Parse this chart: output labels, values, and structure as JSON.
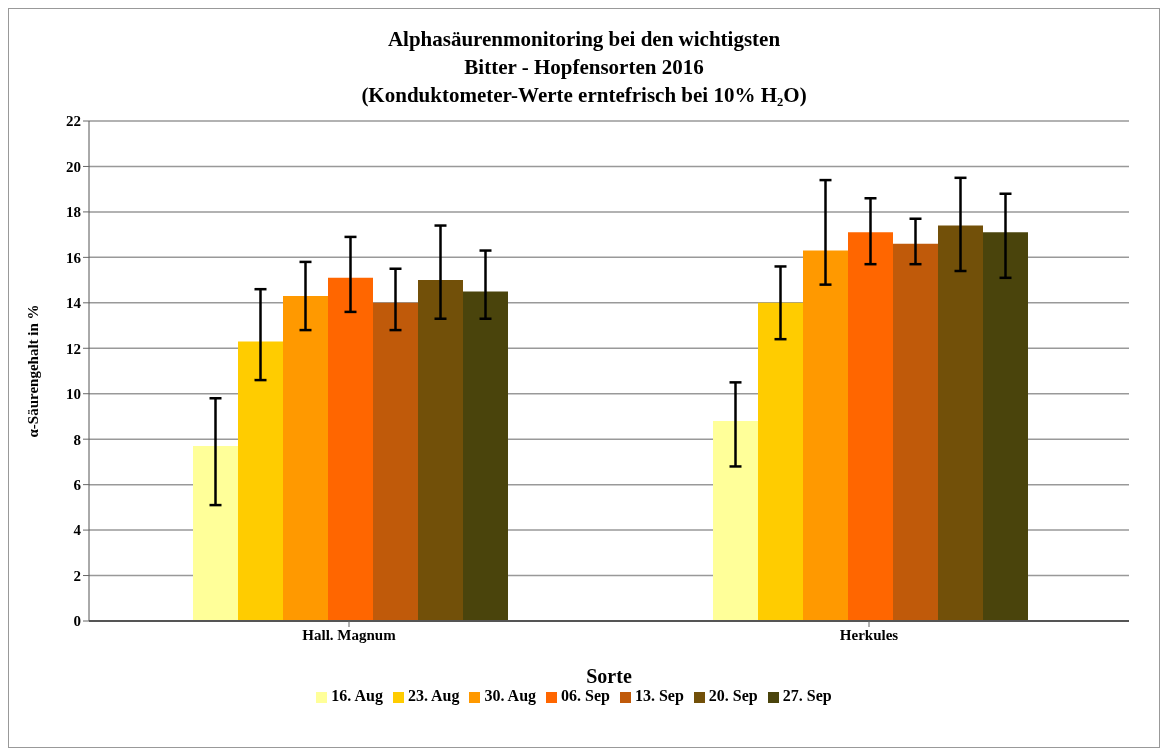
{
  "chart_data": {
    "type": "bar",
    "title": "Alphasäurenmonitoring  bei den wichtigsten\nBitter - Hopfensorten 2016\n(Konduktometer-Werte  erntefrisch  bei 10% H₂O)",
    "xlabel": "Sorte",
    "ylabel": "α-Säurengehalt in %",
    "categories": [
      "Hall. Magnum",
      "Herkules"
    ],
    "series": [
      {
        "name": "16. Aug",
        "color": "#ffff99",
        "values": [
          7.7,
          8.8
        ],
        "errors": [
          [
            5.1,
            9.8
          ],
          [
            6.8,
            10.5
          ]
        ]
      },
      {
        "name": "23. Aug",
        "color": "#ffcc00",
        "values": [
          12.3,
          14.0
        ],
        "errors": [
          [
            10.6,
            14.6
          ],
          [
            12.4,
            15.6
          ]
        ]
      },
      {
        "name": "30. Aug",
        "color": "#ff9900",
        "values": [
          14.3,
          16.3
        ],
        "errors": [
          [
            12.8,
            15.8
          ],
          [
            14.8,
            19.4
          ]
        ]
      },
      {
        "name": "06. Sep",
        "color": "#ff6600",
        "values": [
          15.1,
          17.1
        ],
        "errors": [
          [
            13.6,
            16.9
          ],
          [
            15.7,
            18.6
          ]
        ]
      },
      {
        "name": "13. Sep",
        "color": "#c05a0a",
        "values": [
          14.0,
          16.6
        ],
        "errors": [
          [
            12.8,
            15.5
          ],
          [
            15.7,
            17.7
          ]
        ]
      },
      {
        "name": "20. Sep",
        "color": "#725009",
        "values": [
          15.0,
          17.4
        ],
        "errors": [
          [
            13.3,
            17.4
          ],
          [
            15.4,
            19.5
          ]
        ]
      },
      {
        "name": "27. Sep",
        "color": "#4a440c",
        "values": [
          14.5,
          17.1
        ],
        "errors": [
          [
            13.3,
            16.3
          ],
          [
            15.1,
            18.8
          ]
        ]
      }
    ],
    "ylim": [
      0,
      22
    ],
    "yticks": [
      0,
      2,
      4,
      6,
      8,
      10,
      12,
      14,
      16,
      18,
      20,
      22
    ],
    "grid": "y",
    "legend": "bottom"
  }
}
